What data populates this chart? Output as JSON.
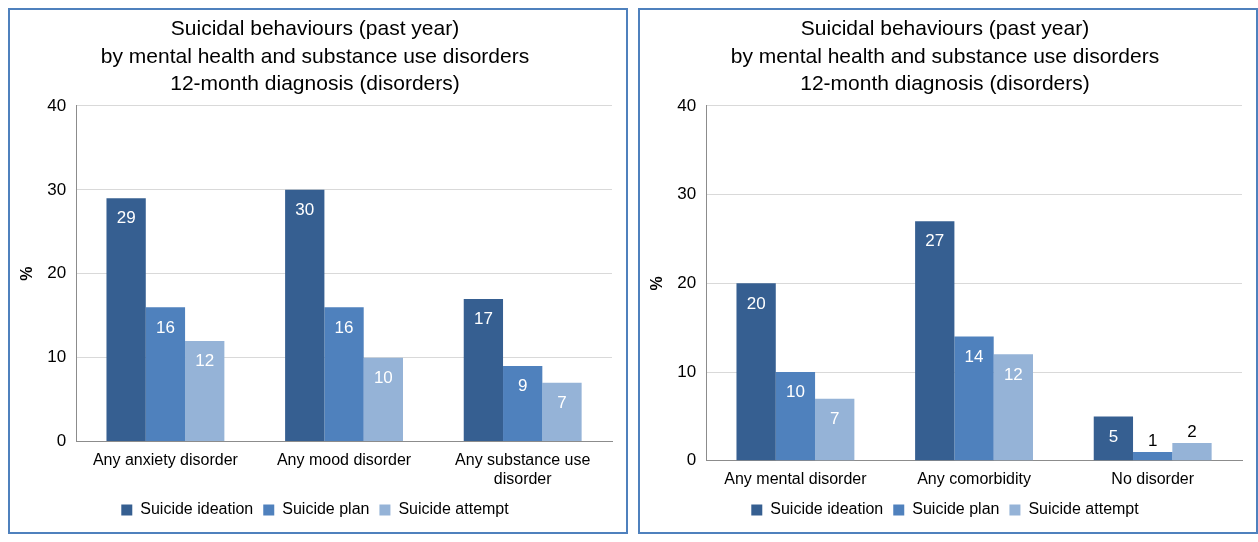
{
  "chart_data": [
    {
      "type": "bar",
      "title": [
        "Suicidal behaviours (past year)",
        "by mental health and substance use disorders",
        "12-month diagnosis (disorders)"
      ],
      "ylabel": "%",
      "categories": [
        "Any anxiety disorder",
        "Any mood disorder",
        "Any substance use disorder"
      ],
      "series": [
        {
          "name": "Suicide ideation",
          "color": "#365f91",
          "values": [
            29,
            30,
            17
          ]
        },
        {
          "name": "Suicide plan",
          "color": "#4f81bd",
          "values": [
            16,
            16,
            9
          ]
        },
        {
          "name": "Suicide attempt",
          "color": "#95b3d7",
          "values": [
            12,
            10,
            7
          ]
        }
      ],
      "ylim": [
        0,
        40
      ],
      "yticks": [
        0,
        10,
        20,
        30,
        40
      ],
      "grid": "y",
      "legend": "bottom",
      "data_labels": true
    },
    {
      "type": "bar",
      "title": [
        "Suicidal behaviours (past year)",
        "by mental health and substance use disorders",
        "12-month diagnosis (disorders)"
      ],
      "ylabel": "%",
      "categories": [
        "Any mental disorder",
        "Any comorbidity",
        "No disorder"
      ],
      "series": [
        {
          "name": "Suicide ideation",
          "color": "#365f91",
          "values": [
            20,
            27,
            5
          ]
        },
        {
          "name": "Suicide plan",
          "color": "#4f81bd",
          "values": [
            10,
            14,
            1
          ]
        },
        {
          "name": "Suicide attempt",
          "color": "#95b3d7",
          "values": [
            7,
            12,
            2
          ]
        }
      ],
      "ylim": [
        0,
        40
      ],
      "yticks": [
        0,
        10,
        20,
        30,
        40
      ],
      "grid": "y",
      "legend": "bottom",
      "data_labels": true
    }
  ]
}
